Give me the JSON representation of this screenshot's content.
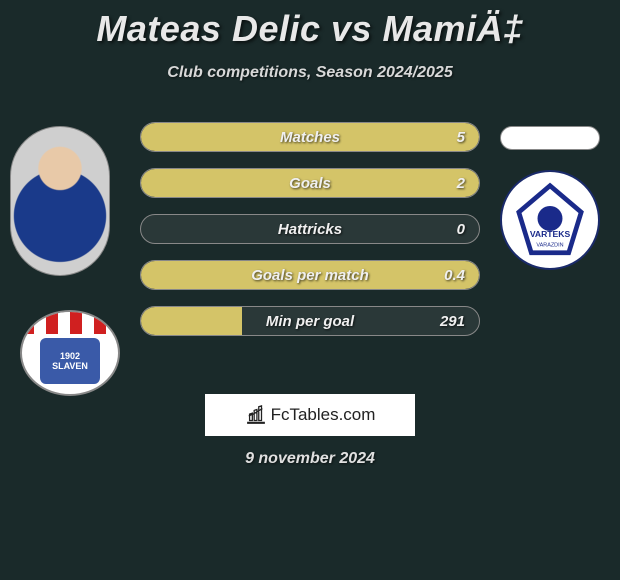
{
  "title": "Mateas Delic vs MamiÄ‡",
  "subtitle": "Club competitions, Season 2024/2025",
  "date": "9 november 2024",
  "logo_text": "FcTables.com",
  "colors": {
    "background": "#1a2a2a",
    "bar_fill": "#d4c468",
    "bar_empty": "#2a3838",
    "bar_border": "#888888",
    "text": "#e8e8e8"
  },
  "stats": [
    {
      "label": "Matches",
      "value": "5",
      "fill_pct": 100
    },
    {
      "label": "Goals",
      "value": "2",
      "fill_pct": 100
    },
    {
      "label": "Hattricks",
      "value": "0",
      "fill_pct": 0
    },
    {
      "label": "Goals per match",
      "value": "0.4",
      "fill_pct": 100
    },
    {
      "label": "Min per goal",
      "value": "291",
      "fill_pct": 30
    }
  ],
  "left_badge": {
    "year": "1902",
    "name": "SLAVEN"
  },
  "right_badge": {
    "name": "VARTEKS",
    "city": "VARAZDIN"
  }
}
